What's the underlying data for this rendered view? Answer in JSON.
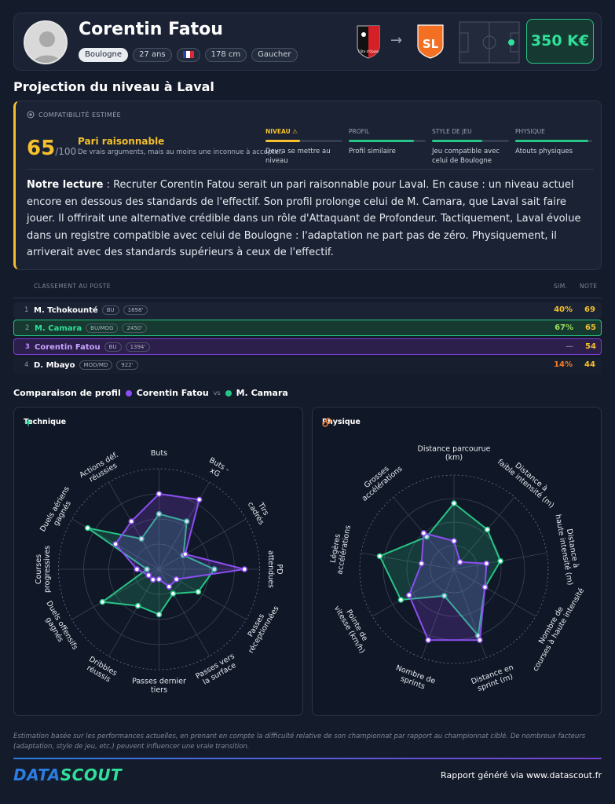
{
  "player": {
    "name": "Corentin Fatou",
    "tags": [
      "Boulogne",
      "27 ans",
      "178 cm",
      "Gaucher"
    ]
  },
  "transfer": {
    "fee": "350 K€",
    "origin_club": "US Boulogne Côte d'Opale",
    "origin_club_text": "Côte d'Opale",
    "destination_club": "Stade Lavallois",
    "destination_club_text": "SL"
  },
  "projection": {
    "title": "Projection du niveau à Laval",
    "header": "COMPATIBILITÉ ESTIMÉE",
    "score": "65",
    "score_max": "/100",
    "verdict": "Pari raisonnable",
    "verdict_sub": "De vrais arguments, mais au moins une inconnue à accepter.",
    "criteria": [
      {
        "label": "NIVEAU ⚠",
        "desc": "Devra se mettre au niveau",
        "fill": 0.45,
        "color": "#f5c02b",
        "warn": true
      },
      {
        "label": "PROFIL",
        "desc": "Profil similaire",
        "fill": 0.85,
        "color": "#27c486",
        "warn": false
      },
      {
        "label": "STYLE DE JEU",
        "desc": "Jeu compatible avec celui de Boulogne",
        "fill": 0.65,
        "color": "#27c486",
        "warn": false
      },
      {
        "label": "PHYSIQUE",
        "desc": "Atouts physiques",
        "fill": 0.95,
        "color": "#27c486",
        "warn": false
      }
    ],
    "reading_label": "Notre lecture",
    "reading_text": " : Recruter Corentin Fatou serait un pari raisonnable pour Laval. En cause : un niveau actuel encore en dessous des standards de l'effectif. Son profil prolonge celui de M. Camara, que Laval sait faire jouer. Il offrirait une alternative crédible dans un rôle d'Attaquant de Profondeur. Tactiquement, Laval évolue dans un registre compatible avec celui de Boulogne : l'adaptation ne part pas de zéro. Physiquement, il arriverait avec des standards supérieurs à ceux de l'effectif."
  },
  "ranking": {
    "header": "CLASSEMENT AU POSTE",
    "col_sim": "SIM.",
    "col_note": "NOTE",
    "rows": [
      {
        "idx": "1",
        "name": "M. Tchokounté",
        "pos": "BU",
        "mins": "1698'",
        "sim": "40%",
        "sim_color": "#f5c02b",
        "note": "69"
      },
      {
        "idx": "2",
        "name": "M. Camara",
        "pos": "BU/MOG",
        "mins": "2450'",
        "sim": "67%",
        "sim_color": "#9be15d",
        "note": "65"
      },
      {
        "idx": "3",
        "name": "Corentin Fatou",
        "pos": "BU",
        "mins": "1394'",
        "sim": "—",
        "sim_color": "#6c7586",
        "note": "54"
      },
      {
        "idx": "4",
        "name": "D. Mbayo",
        "pos": "MOD/MD",
        "mins": "922'",
        "sim": "14%",
        "sim_color": "#f07a2b",
        "note": "44"
      }
    ]
  },
  "comparison": {
    "title": "Comparaison de profil",
    "player_a": "Corentin Fatou",
    "player_a_color": "#8b4ef0",
    "vs": "vs",
    "player_b": "M. Camara",
    "player_b_color": "#27c486"
  },
  "technique": {
    "title": "Technique",
    "labels": [
      [
        "Buts"
      ],
      [
        "Buts -",
        "xG"
      ],
      [
        "Tirs",
        "cadrés"
      ],
      [
        "PD",
        "attendues"
      ],
      [
        "Passes",
        "réceptionnées"
      ],
      [
        "Passes vers",
        "la surface"
      ],
      [
        "Passes dernier",
        "tiers"
      ],
      [
        "Dribbles",
        "réussis"
      ],
      [
        "Duels offensifs",
        "gagnés"
      ],
      [
        "Courses",
        "progressives"
      ],
      [
        "Duels aériens",
        "gagnés"
      ],
      [
        "Actions déf.",
        "réussies"
      ]
    ],
    "player_a": [
      0.75,
      0.8,
      0.3,
      0.85,
      0.2,
      0.2,
      0.1,
      0.12,
      0.12,
      0.22,
      0.5,
      0.55
    ],
    "player_b": [
      0.55,
      0.55,
      0.28,
      0.55,
      0.45,
      0.28,
      0.45,
      0.42,
      0.65,
      0.12,
      0.82,
      0.35
    ]
  },
  "physique": {
    "title": "Physique",
    "labels": [
      [
        "Distance parcourue",
        "(km)"
      ],
      [
        "Distance à",
        "faible intensité (m)"
      ],
      [
        "Distance à",
        "haute intensité (m)"
      ],
      [
        "Nombre de",
        "courses à haute intensité"
      ],
      [
        "Distance en",
        "sprint (m)"
      ],
      [
        "Nombre de",
        "sprints"
      ],
      [
        "Pointe de",
        "vitesse (km/h)"
      ],
      [
        "Légères",
        "accélérations"
      ],
      [
        "Grosses",
        "accélérations"
      ]
    ],
    "player_a": [
      0.3,
      0.1,
      0.35,
      0.38,
      0.8,
      0.8,
      0.55,
      0.35,
      0.5
    ],
    "player_b": [
      0.7,
      0.55,
      0.5,
      0.38,
      0.75,
      0.3,
      0.65,
      0.8,
      0.45
    ]
  },
  "disclaimer": "Estimation basée sur les performances actuelles, en prenant en compte la difficulté relative de son championnat par rapport au championnat ciblé. De nombreux facteurs (adaptation, style de jeu, etc.) peuvent influencer une vraie transition.",
  "footer": {
    "logo_a": "DATA",
    "logo_b": "SCOUT",
    "generated": "Rapport généré via www.datascout.fr"
  }
}
